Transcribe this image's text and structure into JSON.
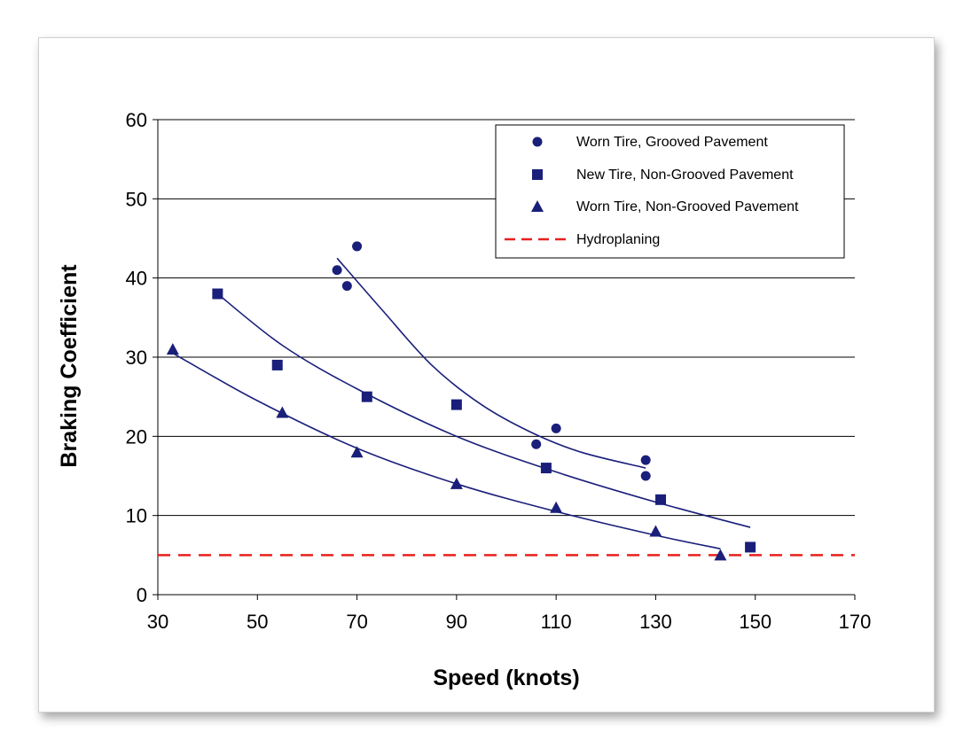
{
  "chart_data": {
    "type": "scatter",
    "xlabel": "Speed (knots)",
    "ylabel": "Braking Coefficient",
    "xlim": [
      30,
      170
    ],
    "ylim": [
      0,
      60
    ],
    "xticks": [
      30,
      50,
      70,
      90,
      110,
      130,
      150,
      170
    ],
    "yticks": [
      0,
      10,
      20,
      30,
      40,
      50,
      60
    ],
    "grid": "horizontal",
    "legend_position": "top-right",
    "colors": {
      "series": "#1a1f7a",
      "hydroplaning": "#e8201f",
      "grid": "#000000"
    },
    "series": [
      {
        "name": "Worn Tire, Grooved Pavement",
        "marker": "circle",
        "points": [
          [
            66,
            41
          ],
          [
            68,
            39
          ],
          [
            70,
            44
          ],
          [
            106,
            19
          ],
          [
            110,
            21
          ],
          [
            128,
            17
          ],
          [
            128,
            15
          ]
        ],
        "trend": [
          [
            66,
            42.5
          ],
          [
            75,
            36
          ],
          [
            85,
            29
          ],
          [
            95,
            24
          ],
          [
            105,
            20.5
          ],
          [
            115,
            18
          ],
          [
            128,
            16
          ]
        ]
      },
      {
        "name": "New Tire, Non-Grooved Pavement",
        "marker": "square",
        "points": [
          [
            42,
            38
          ],
          [
            54,
            29
          ],
          [
            72,
            25
          ],
          [
            90,
            24
          ],
          [
            108,
            16
          ],
          [
            131,
            12
          ],
          [
            149,
            6
          ]
        ],
        "trend": [
          [
            42,
            38
          ],
          [
            55,
            31.5
          ],
          [
            70,
            26
          ],
          [
            90,
            20
          ],
          [
            110,
            15.5
          ],
          [
            130,
            11.7
          ],
          [
            149,
            8.5
          ]
        ]
      },
      {
        "name": "Worn Tire, Non-Grooved Pavement",
        "marker": "triangle",
        "points": [
          [
            33,
            31
          ],
          [
            55,
            23
          ],
          [
            70,
            18
          ],
          [
            90,
            14
          ],
          [
            110,
            11
          ],
          [
            130,
            8
          ],
          [
            143,
            5
          ]
        ],
        "trend": [
          [
            33,
            30.5
          ],
          [
            50,
            24.5
          ],
          [
            70,
            18.5
          ],
          [
            90,
            14
          ],
          [
            110,
            10.5
          ],
          [
            130,
            7.5
          ],
          [
            143,
            5.8
          ]
        ]
      }
    ],
    "reference_line": {
      "name": "Hydroplaning",
      "y": 5,
      "x_range": [
        30,
        170
      ],
      "style": "dashed"
    }
  }
}
